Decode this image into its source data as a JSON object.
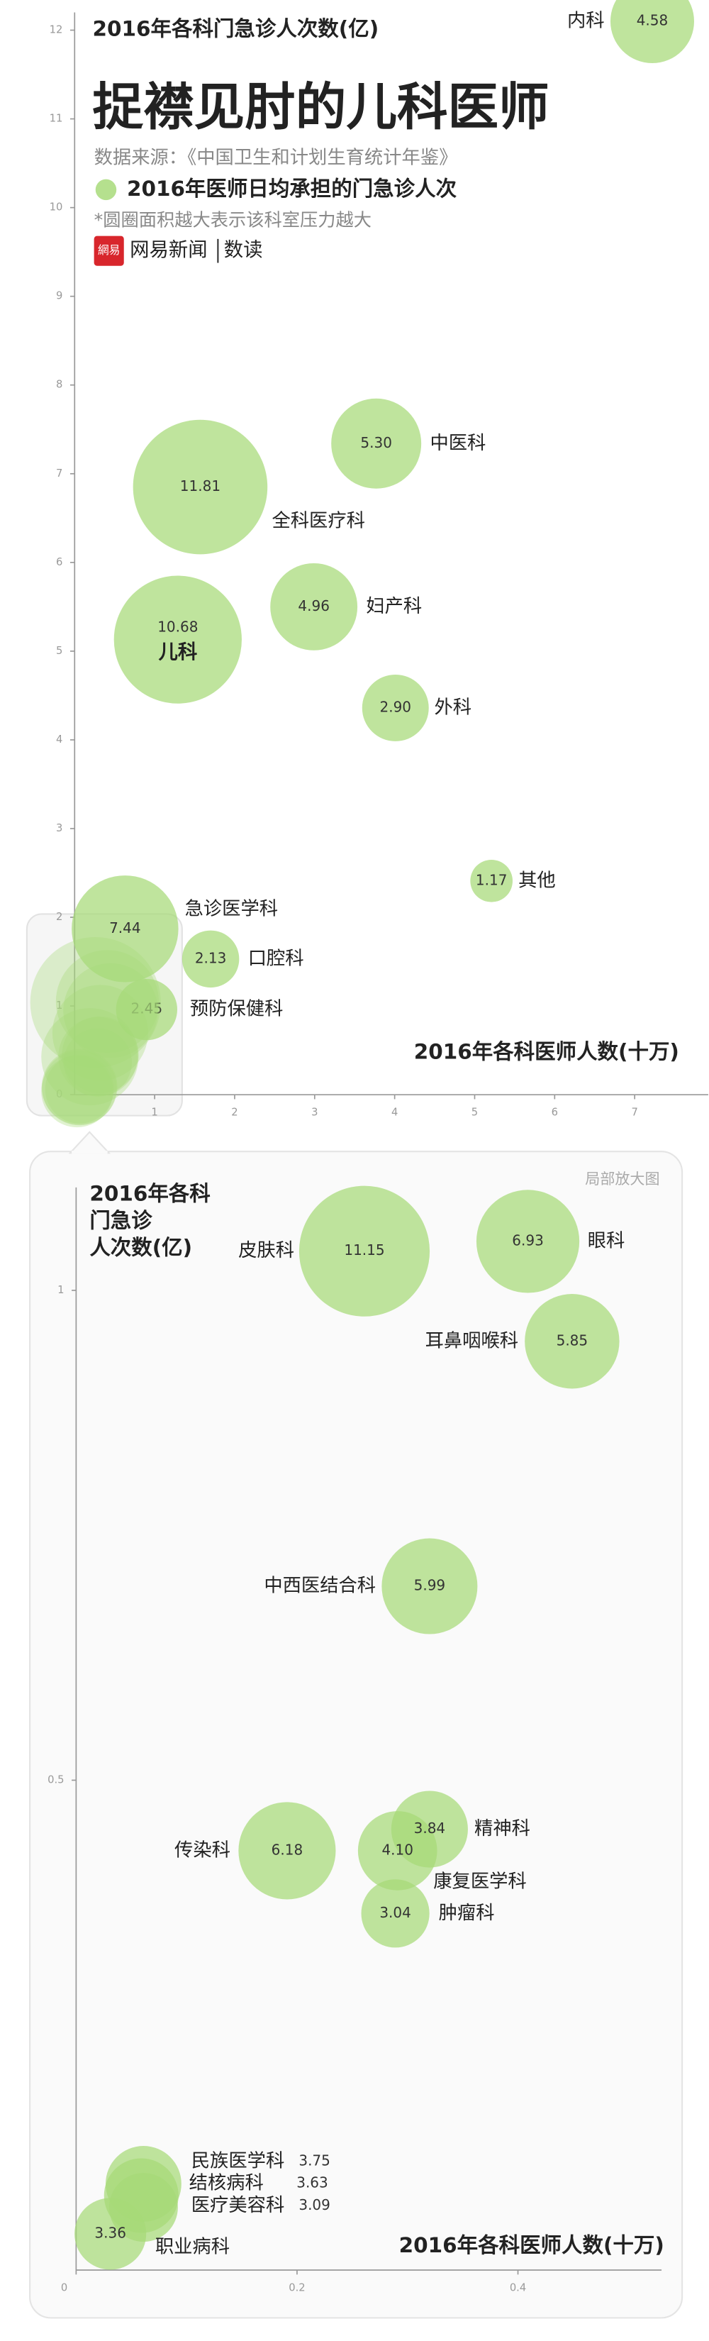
{
  "header": {
    "title": "捉襟见肘的儿科医师",
    "source": "数据来源：《中国卫生和计划生育统计年鉴》",
    "legend": "2016年医师日均承担的门急诊人次",
    "note": "*圆圈面积越大表示该科室压力越大",
    "logo": "網易",
    "brand": "网易新闻",
    "section": "数读"
  },
  "chart_data": [
    {
      "type": "bubble",
      "y_label": "2016年各科门急诊人次数(亿)",
      "x_label": "2016年各科医师人数(十万)",
      "color": "#a6d977",
      "labels": [
        "内科",
        "中医科",
        "全科医疗科",
        "妇产科",
        "儿科",
        "外科",
        "其他",
        "急诊医学科",
        "口腔科",
        "预防保健科"
      ],
      "x": [
        7.22,
        3.77,
        1.57,
        2.99,
        1.29,
        4.01,
        5.21,
        0.63,
        1.7,
        0.9
      ],
      "values": [
        12.1,
        7.34,
        6.85,
        5.5,
        5.13,
        4.36,
        2.41,
        1.87,
        1.53,
        0.96
      ],
      "sizes": [
        4.58,
        5.3,
        11.81,
        4.96,
        10.68,
        2.9,
        1.17,
        7.44,
        2.13,
        2.45
      ],
      "size_labels": [
        "4.58",
        "5.30",
        "11.81",
        "4.96",
        "10.68",
        "2.90",
        "1.17",
        "7.44",
        "2.13",
        "2.45"
      ],
      "xlim": [
        0,
        7.92
      ],
      "ylim": [
        0,
        12.2
      ],
      "xticks": [
        1,
        2,
        3,
        4,
        5,
        6,
        7
      ],
      "yticks": [
        0,
        1,
        2,
        3,
        4,
        5,
        6,
        7,
        8,
        9,
        10,
        11,
        12
      ]
    },
    {
      "type": "bubble",
      "annotation": "局部放大图",
      "y_label_lines": [
        "2016年各科",
        "门急诊",
        "人次数(亿)"
      ],
      "x_label": "2016年各科医师人数(十万)",
      "color": "#a6d977",
      "labels": [
        "皮肤科",
        "眼科",
        "耳鼻咽喉科",
        "中西医结合科",
        "传染科",
        "精神科",
        "康复医学科",
        "肿瘤科",
        "民族医学科",
        "结核病科",
        "医疗美容科",
        "职业病科"
      ],
      "x": [
        0.261,
        0.409,
        0.449,
        0.32,
        0.191,
        0.32,
        0.291,
        0.289,
        0.061,
        0.059,
        0.061,
        0.031
      ],
      "values": [
        1.04,
        1.05,
        0.948,
        0.698,
        0.428,
        0.45,
        0.428,
        0.364,
        0.088,
        0.076,
        0.064,
        0.037
      ],
      "sizes": [
        11.15,
        6.93,
        5.85,
        5.99,
        6.18,
        3.84,
        4.1,
        3.04,
        3.75,
        3.63,
        3.09,
        3.36
      ],
      "size_labels": [
        "11.15",
        "6.93",
        "5.85",
        "5.99",
        "6.18",
        "3.84",
        "4.10",
        "3.04",
        "3.75",
        "3.63",
        "3.09",
        "3.36"
      ],
      "xlim": [
        0,
        0.53
      ],
      "ylim": [
        0,
        1.105
      ],
      "xticks": [
        0,
        0.2,
        0.4
      ],
      "yticks": [
        0.5,
        1
      ]
    }
  ]
}
